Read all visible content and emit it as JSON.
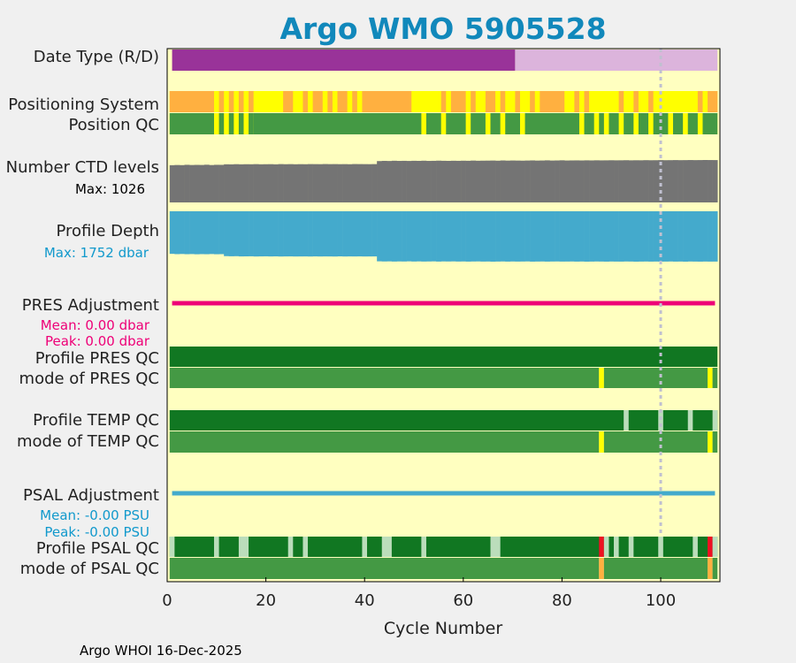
{
  "chart_data": {
    "type": "timeline",
    "title": "Argo WMO 5905528",
    "xlabel": "Cycle Number",
    "xlim": [
      0,
      112
    ],
    "xticks": [
      "0",
      "20",
      "40",
      "60",
      "80",
      "100"
    ],
    "dashed_line_cycle": 100,
    "footer": "Argo WHOI 16-Dec-2025",
    "colors": {
      "title": "#1188bb",
      "background": "#ffffc0",
      "purple_dark": "#993399",
      "purple_light": "#dcb4dc",
      "orange": "#ffb040",
      "yellow": "#ffff00",
      "green_mid": "#449944",
      "green_dark": "#117722",
      "green_light": "#bbddbb",
      "gray": "#747474",
      "blue": "#44aacc",
      "magenta": "#ee0077",
      "red": "#ee1122",
      "cyan_text": "#1199cc"
    },
    "rows": {
      "date_type": {
        "label": "Date Type (R/D)",
        "segments": [
          [
            1,
            70.5,
            "purple_dark"
          ],
          [
            70.5,
            111.5,
            "purple_light"
          ]
        ]
      },
      "positioning_system": {
        "label": "Positioning System",
        "base": "yellow",
        "segments": [
          [
            0.5,
            9.5,
            "orange"
          ],
          [
            10.5,
            11.5,
            "orange"
          ],
          [
            12.5,
            13.5,
            "orange"
          ],
          [
            14.5,
            15.5,
            "orange"
          ],
          [
            16.5,
            17.5,
            "orange"
          ],
          [
            23.5,
            25.5,
            "orange"
          ],
          [
            27.5,
            28.5,
            "orange"
          ],
          [
            29.5,
            31.5,
            "orange"
          ],
          [
            32.5,
            33.5,
            "orange"
          ],
          [
            34.5,
            36.5,
            "orange"
          ],
          [
            37.5,
            38.5,
            "orange"
          ],
          [
            39.5,
            49.5,
            "orange"
          ],
          [
            55.5,
            56.5,
            "orange"
          ],
          [
            57.5,
            60.5,
            "orange"
          ],
          [
            61.5,
            62.5,
            "orange"
          ],
          [
            64.5,
            66.5,
            "orange"
          ],
          [
            67.5,
            68.5,
            "orange"
          ],
          [
            70.5,
            71.5,
            "orange"
          ],
          [
            73.5,
            74.5,
            "orange"
          ],
          [
            75.5,
            80.5,
            "orange"
          ],
          [
            82.5,
            83.5,
            "orange"
          ],
          [
            84.5,
            85.5,
            "orange"
          ],
          [
            91.5,
            92.5,
            "orange"
          ],
          [
            94.5,
            95.5,
            "orange"
          ],
          [
            97.5,
            98.5,
            "orange"
          ],
          [
            107.5,
            108.5,
            "orange"
          ],
          [
            109.5,
            111.5,
            "orange"
          ]
        ]
      },
      "position_qc": {
        "label": "Position QC",
        "base": "yellow",
        "segments": [
          [
            0.5,
            9.5,
            "green_mid"
          ],
          [
            10.5,
            11.5,
            "green_mid"
          ],
          [
            12.5,
            13.5,
            "green_mid"
          ],
          [
            14.5,
            15.5,
            "green_mid"
          ],
          [
            16.5,
            17.5,
            "green_mid"
          ],
          [
            17.5,
            51.5,
            "green_mid"
          ],
          [
            52.5,
            55.5,
            "green_mid"
          ],
          [
            56.5,
            60.5,
            "green_mid"
          ],
          [
            61.5,
            64.5,
            "green_mid"
          ],
          [
            65.5,
            67.5,
            "green_mid"
          ],
          [
            68.5,
            71.5,
            "green_mid"
          ],
          [
            72.5,
            83.5,
            "green_mid"
          ],
          [
            84.5,
            86.5,
            "green_mid"
          ],
          [
            87.5,
            88.5,
            "green_mid"
          ],
          [
            89.5,
            91.5,
            "green_mid"
          ],
          [
            92.5,
            94.5,
            "green_mid"
          ],
          [
            95.5,
            97.5,
            "green_mid"
          ],
          [
            98.5,
            101.5,
            "green_mid"
          ],
          [
            102.5,
            104.5,
            "green_mid"
          ],
          [
            105.5,
            107.5,
            "green_mid"
          ],
          [
            108.5,
            111.5,
            "green_mid"
          ]
        ]
      },
      "ctd_levels": {
        "label": "Number CTD levels",
        "max_label": "Max: 1026",
        "max": 1026,
        "values": [
          900,
          905,
          902,
          910,
          905,
          908,
          906,
          912,
          904,
          910,
          909,
          922,
          920,
          925,
          921,
          924,
          923,
          926,
          922,
          924,
          925,
          921,
          927,
          924,
          926,
          923,
          925,
          924,
          927,
          926,
          925,
          928,
          926,
          927,
          925,
          926,
          924,
          928,
          927,
          926,
          925,
          927,
          1000,
          1005,
          1002,
          1008,
          1004,
          1006,
          1003,
          1007,
          1005,
          1009,
          1004,
          1006,
          1010,
          1007,
          1005,
          1008,
          1006,
          1009,
          1007,
          1012,
          1008,
          1010,
          1011,
          1013,
          1009,
          1015,
          1011,
          1014,
          1012,
          1010,
          1013,
          1016,
          1012,
          1014,
          1018,
          1013,
          1015,
          1019,
          1014,
          1016,
          1017,
          1015,
          1018,
          1016,
          1019,
          1017,
          1018,
          1020,
          1018,
          1019,
          1021,
          1018,
          1020,
          1019,
          1022,
          1020,
          1021,
          1023,
          1021,
          1022,
          1024,
          1022,
          1023,
          1025,
          1023,
          1024,
          1026,
          1025,
          1024
        ]
      },
      "profile_depth": {
        "label": "Profile Depth",
        "max_label": "Max: 1752 dbar",
        "max": 1752,
        "values": [
          1480,
          1490,
          1485,
          1492,
          1488,
          1495,
          1490,
          1493,
          1487,
          1494,
          1491,
          1560,
          1565,
          1562,
          1570,
          1568,
          1566,
          1572,
          1569,
          1567,
          1571,
          1568,
          1573,
          1570,
          1569,
          1572,
          1571,
          1570,
          1573,
          1569,
          1572,
          1570,
          1571,
          1573,
          1568,
          1572,
          1570,
          1571,
          1569,
          1572,
          1571,
          1570,
          1740,
          1745,
          1742,
          1748,
          1744,
          1746,
          1741,
          1747,
          1743,
          1748,
          1745,
          1742,
          1749,
          1744,
          1746,
          1743,
          1748,
          1745,
          1750,
          1746,
          1744,
          1749,
          1747,
          1752,
          1748,
          1745,
          1750,
          1746,
          1749,
          1747,
          1744,
          1751,
          1748,
          1746,
          1750,
          1747,
          1745,
          1749,
          1748,
          1746,
          1750,
          1747,
          1752,
          1749,
          1746,
          1748,
          1751,
          1747,
          1749,
          1750,
          1746,
          1748,
          1752,
          1749,
          1747,
          1750,
          1748,
          1751,
          1749,
          1746,
          1750,
          1748,
          1752,
          1747,
          1749,
          1751,
          1748,
          1750,
          1749
        ]
      },
      "pres_adjustment": {
        "label": "PRES Adjustment",
        "mean_label": "Mean: 0.00 dbar",
        "peak_label": "Peak: 0.00 dbar",
        "range": [
          1,
          111
        ]
      },
      "profile_pres_qc": {
        "label": "Profile PRES QC",
        "segments": [
          [
            0.5,
            111.5,
            "green_dark"
          ]
        ]
      },
      "mode_pres_qc": {
        "label": "mode of PRES QC",
        "segments": [
          [
            0.5,
            87.5,
            "green_mid"
          ],
          [
            87.5,
            88.5,
            "yellow"
          ],
          [
            88.5,
            110.5,
            "green_mid"
          ],
          [
            109.5,
            110.5,
            "yellow"
          ],
          [
            110.5,
            111.5,
            "green_mid"
          ]
        ]
      },
      "profile_temp_qc": {
        "label": "Profile TEMP QC",
        "segments": [
          [
            0.5,
            111.5,
            "green_dark"
          ],
          [
            92.5,
            93.5,
            "green_light"
          ],
          [
            99.5,
            100.5,
            "green_light"
          ],
          [
            105.5,
            106.5,
            "green_light"
          ],
          [
            110.5,
            111.5,
            "green_light"
          ]
        ]
      },
      "mode_temp_qc": {
        "label": "mode of TEMP QC",
        "segments": [
          [
            0.5,
            87.5,
            "green_mid"
          ],
          [
            87.5,
            88.5,
            "yellow"
          ],
          [
            88.5,
            109.5,
            "green_mid"
          ],
          [
            109.5,
            110.5,
            "yellow"
          ],
          [
            110.5,
            111.5,
            "green_mid"
          ]
        ]
      },
      "psal_adjustment": {
        "label": "PSAL Adjustment",
        "mean_label": "Mean: -0.00 PSU",
        "peak_label": "Peak: -0.00 PSU",
        "range": [
          1,
          111
        ]
      },
      "profile_psal_qc": {
        "label": "Profile PSAL QC",
        "segments": [
          [
            0.5,
            111.5,
            "green_dark"
          ],
          [
            0.5,
            1.5,
            "green_light"
          ],
          [
            9.5,
            10.5,
            "green_light"
          ],
          [
            14.5,
            16.5,
            "green_light"
          ],
          [
            24.5,
            25.5,
            "green_light"
          ],
          [
            27.5,
            28.5,
            "green_light"
          ],
          [
            39.5,
            40.5,
            "green_light"
          ],
          [
            43.5,
            45.5,
            "green_light"
          ],
          [
            51.5,
            52.5,
            "green_light"
          ],
          [
            65.5,
            67.5,
            "green_light"
          ],
          [
            87.5,
            88.5,
            "red"
          ],
          [
            88.5,
            89.5,
            "green_light"
          ],
          [
            90.5,
            91.5,
            "green_light"
          ],
          [
            93.5,
            94.5,
            "green_light"
          ],
          [
            99.5,
            100.5,
            "green_light"
          ],
          [
            106.5,
            107.5,
            "green_light"
          ],
          [
            109.5,
            110.5,
            "red"
          ],
          [
            110.5,
            111.5,
            "green_light"
          ]
        ]
      },
      "mode_psal_qc": {
        "label": "mode of PSAL QC",
        "segments": [
          [
            0.5,
            87.5,
            "green_mid"
          ],
          [
            87.5,
            88.5,
            "orange"
          ],
          [
            88.5,
            109.5,
            "green_mid"
          ],
          [
            109.5,
            110.5,
            "orange"
          ],
          [
            110.5,
            111.5,
            "green_mid"
          ]
        ]
      }
    }
  }
}
